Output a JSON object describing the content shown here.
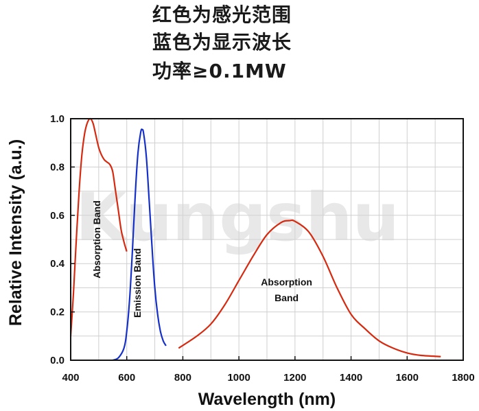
{
  "header": {
    "line1": "红色为感光范围",
    "line2": "蓝色为显示波长",
    "line3": "功率≥0.1MW"
  },
  "watermark": "Kungshu",
  "colors": {
    "absorption": "#d62a10",
    "emission": "#1530c8",
    "grid": "#cfcfcf",
    "axis": "#111111"
  },
  "chart_data": {
    "type": "line",
    "xlabel": "Wavelength (nm)",
    "ylabel": "Relative Intensity (a.u.)",
    "xlim": [
      400,
      1800
    ],
    "ylim": [
      0,
      1.0
    ],
    "xticks": [
      "400",
      "600",
      "800",
      "1000",
      "1200",
      "1400",
      "1600",
      "1800"
    ],
    "yticks": [
      "0.0",
      "0.2",
      "0.4",
      "0.6",
      "0.8",
      "1.0"
    ],
    "grid": true,
    "annotations": [
      {
        "text": "Absorption Band",
        "x": 505,
        "y": 0.5,
        "rotate": -90
      },
      {
        "text": "Emission Band",
        "x": 650,
        "y": 0.32,
        "rotate": -90
      },
      {
        "text": "Absorption",
        "x": 1170,
        "y": 0.31,
        "rotate": 0
      },
      {
        "text": "Band",
        "x": 1170,
        "y": 0.245,
        "rotate": 0
      }
    ],
    "series": [
      {
        "color": "#d62a10",
        "x": [
          400,
          410,
          420,
          430,
          440,
          450,
          460,
          470,
          480,
          490,
          500,
          510,
          520,
          530,
          540,
          550,
          560,
          570,
          580,
          590,
          600
        ],
        "y": [
          0.1,
          0.28,
          0.5,
          0.7,
          0.85,
          0.94,
          0.985,
          1.0,
          0.98,
          0.93,
          0.88,
          0.85,
          0.83,
          0.82,
          0.81,
          0.78,
          0.7,
          0.62,
          0.54,
          0.49,
          0.45
        ]
      },
      {
        "color": "#1530c8",
        "x": [
          550,
          570,
          590,
          600,
          610,
          620,
          630,
          640,
          650,
          655,
          660,
          670,
          680,
          690,
          700,
          710,
          720,
          730,
          740
        ],
        "y": [
          0.0,
          0.01,
          0.05,
          0.12,
          0.25,
          0.45,
          0.68,
          0.86,
          0.945,
          0.955,
          0.94,
          0.84,
          0.66,
          0.47,
          0.3,
          0.19,
          0.12,
          0.08,
          0.06
        ]
      },
      {
        "color": "#d62a10",
        "x": [
          785,
          850,
          900,
          950,
          1000,
          1050,
          1100,
          1150,
          1180,
          1200,
          1250,
          1300,
          1350,
          1400,
          1450,
          1500,
          1550,
          1600,
          1650,
          1720
        ],
        "y": [
          0.05,
          0.1,
          0.15,
          0.23,
          0.33,
          0.43,
          0.52,
          0.57,
          0.578,
          0.575,
          0.53,
          0.43,
          0.3,
          0.19,
          0.13,
          0.08,
          0.05,
          0.03,
          0.02,
          0.015
        ]
      }
    ]
  }
}
